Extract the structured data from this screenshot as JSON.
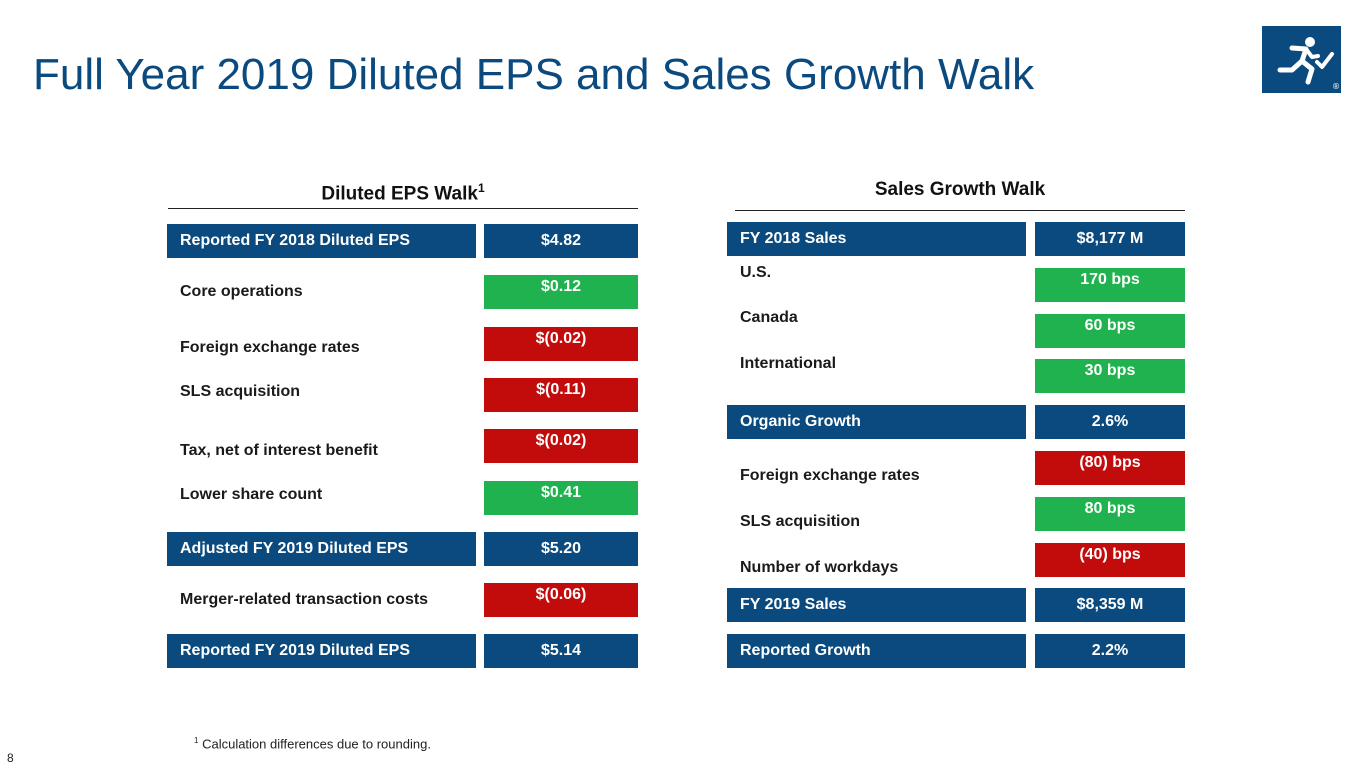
{
  "title": "Full Year 2019 Diluted EPS and Sales Growth Walk",
  "logo": {
    "icon": "running-figure-check-icon",
    "mark": "®"
  },
  "eps": {
    "heading": "Diluted EPS Walk",
    "heading_sup": "1",
    "rows": [
      {
        "label": "Reported FY 2018 Diluted EPS",
        "value": "$4.82",
        "style": "navy",
        "boxed": true
      },
      {
        "label": "Core operations",
        "value": "$0.12",
        "style": "green",
        "boxed": false
      },
      {
        "label": "Foreign exchange rates",
        "value": "$(0.02)",
        "style": "red",
        "boxed": false
      },
      {
        "label": "SLS acquisition",
        "value": "$(0.11)",
        "style": "red",
        "boxed": false
      },
      {
        "label": "Tax, net of interest benefit",
        "value": "$(0.02)",
        "style": "red",
        "boxed": false
      },
      {
        "label": "Lower share count",
        "value": "$0.41",
        "style": "green",
        "boxed": false
      },
      {
        "label": "Adjusted FY 2019 Diluted EPS",
        "value": "$5.20",
        "style": "navy",
        "boxed": true
      },
      {
        "label": "Merger-related transaction costs",
        "value": "$(0.06)",
        "style": "red",
        "boxed": false
      },
      {
        "label": "Reported FY 2019 Diluted EPS",
        "value": "$5.14",
        "style": "navy",
        "boxed": true
      }
    ]
  },
  "sales": {
    "heading": "Sales Growth Walk",
    "rows": [
      {
        "label": "FY 2018 Sales",
        "value": "$8,177 M",
        "style": "navy",
        "boxed": true
      },
      {
        "label": "U.S.",
        "value": "170 bps",
        "style": "green",
        "boxed": false
      },
      {
        "label": "Canada",
        "value": "60 bps",
        "style": "green",
        "boxed": false
      },
      {
        "label": "International",
        "value": "30 bps",
        "style": "green",
        "boxed": false
      },
      {
        "label": "Organic Growth",
        "value": "2.6%",
        "style": "navy",
        "boxed": true
      },
      {
        "label": "Foreign exchange rates",
        "value": "(80) bps",
        "style": "red",
        "boxed": false
      },
      {
        "label": "SLS acquisition",
        "value": "80 bps",
        "style": "green",
        "boxed": false
      },
      {
        "label": "Number of workdays",
        "value": "(40) bps",
        "style": "red",
        "boxed": false
      },
      {
        "label": "FY 2019 Sales",
        "value": "$8,359 M",
        "style": "navy",
        "boxed": true
      },
      {
        "label": "Reported Growth",
        "value": "2.2%",
        "style": "navy",
        "boxed": true
      }
    ]
  },
  "footnote": {
    "sup": "1",
    "text": "Calculation differences due to rounding."
  },
  "page_number": "8"
}
